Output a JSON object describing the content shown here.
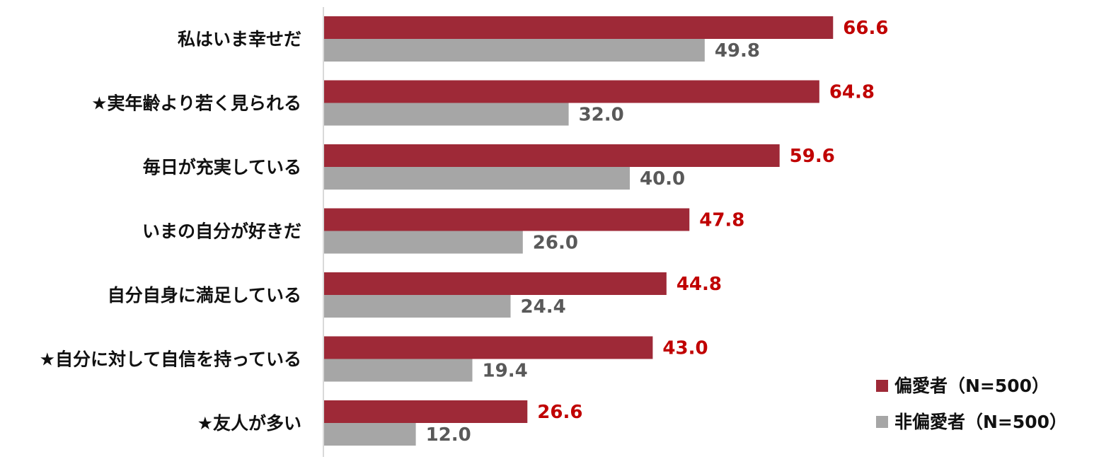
{
  "chart_data": {
    "type": "bar",
    "orientation": "horizontal",
    "categories": [
      "私はいま幸せだ",
      "★実年齢より若く見られる",
      "毎日が充実している",
      "いまの自分が好きだ",
      "自分自身に満足している",
      "★自分に対して自信を持っている",
      "★友人が多い"
    ],
    "series": [
      {
        "name": "偏愛者（N=500）",
        "color": "#9e2937",
        "label_color": "#c00000",
        "values": [
          66.6,
          64.8,
          59.6,
          47.8,
          44.8,
          43.0,
          26.6
        ],
        "labels": [
          "66.6",
          "64.8",
          "59.6",
          "47.8",
          "44.8",
          "43.0",
          "26.6"
        ]
      },
      {
        "name": "非偏愛者（N=500）",
        "color": "#a6a6a6",
        "label_color": "#595959",
        "values": [
          49.8,
          32.0,
          40.0,
          26.0,
          24.4,
          19.4,
          12.0
        ],
        "labels": [
          "49.8",
          "32.0",
          "40.0",
          "26.0",
          "24.4",
          "19.4",
          "12.0"
        ]
      }
    ],
    "xlim": [
      0,
      100
    ],
    "grid": false,
    "legend_position": "bottom-right",
    "axis_color": "#d9d9d9"
  }
}
